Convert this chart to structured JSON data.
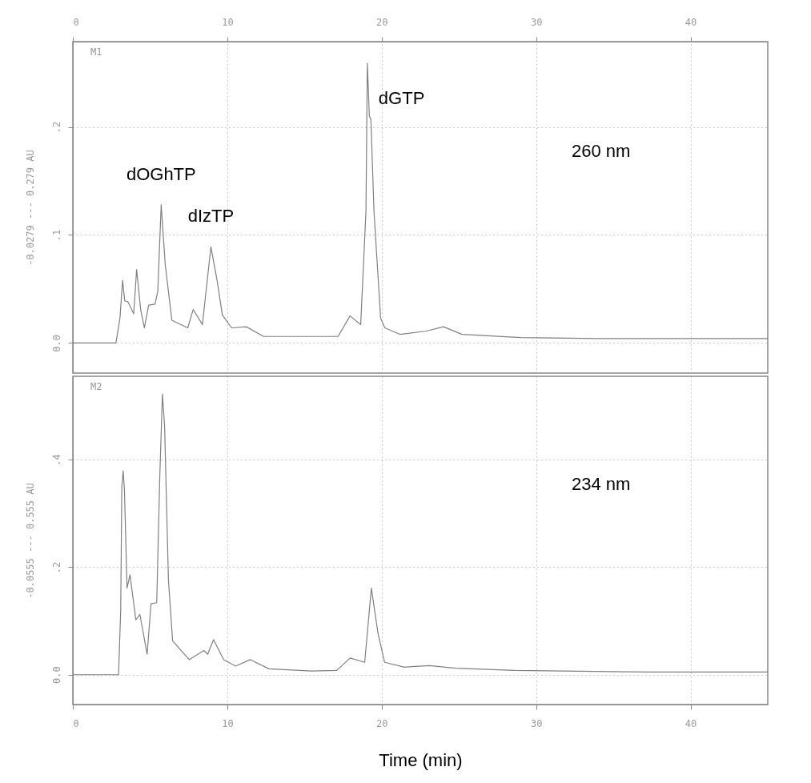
{
  "chart_data": [
    {
      "type": "line",
      "title": "M1",
      "subtitle": "260 nm",
      "ylabel": "-0.0279 --- 0.279 AU",
      "xlim": [
        0,
        45
      ],
      "xticks": [
        0,
        10,
        20,
        30,
        40
      ],
      "ylim": [
        -0.0279,
        0.279
      ],
      "yticks": [
        {
          "value": 0,
          "label": "0.0"
        },
        {
          "value": 0.1,
          "label": ".1"
        },
        {
          "value": 0.2,
          "label": ".2"
        }
      ],
      "grid": true,
      "marker": "none",
      "line_style": "solid",
      "series": [
        {
          "color": "#808080",
          "x": [
            0,
            2.79,
            3.05,
            3.22,
            3.36,
            3.57,
            3.94,
            4.13,
            4.39,
            4.63,
            4.91,
            5.32,
            5.5,
            5.72,
            5.98,
            6.41,
            7.44,
            7.79,
            8.39,
            8.94,
            9.34,
            9.68,
            10.28,
            11.23,
            12.35,
            15.1,
            17.17,
            17.95,
            18.64,
            18.98,
            19.07,
            19.2,
            19.3,
            19.5,
            19.93,
            20.2,
            21.17,
            22.9,
            24.0,
            25.2,
            29.0,
            34.0,
            45
          ],
          "values": [
            0,
            0,
            0.023,
            0.058,
            0.039,
            0.038,
            0.027,
            0.068,
            0.031,
            0.014,
            0.035,
            0.036,
            0.048,
            0.128,
            0.073,
            0.021,
            0.014,
            0.031,
            0.017,
            0.089,
            0.058,
            0.026,
            0.014,
            0.015,
            0.006,
            0.006,
            0.006,
            0.025,
            0.017,
            0.122,
            0.259,
            0.21,
            0.207,
            0.122,
            0.023,
            0.014,
            0.008,
            0.011,
            0.015,
            0.008,
            0.005,
            0.004,
            0.004
          ]
        }
      ],
      "annotations": [
        {
          "text": "dOGhTP",
          "x": 5.72,
          "y": 0.128
        },
        {
          "text": "dIzTP",
          "x": 8.94,
          "y": 0.089
        },
        {
          "text": "dGTP",
          "x": 19.07,
          "y": 0.259
        }
      ]
    },
    {
      "type": "line",
      "title": "M2",
      "subtitle": "234 nm",
      "xlabel": "Time (min)",
      "ylabel": "-0.0555 --- 0.555 AU",
      "xlim": [
        0,
        45
      ],
      "xticks": [
        0,
        10,
        20,
        30,
        40
      ],
      "ylim": [
        -0.0555,
        0.555
      ],
      "yticks": [
        {
          "value": 0,
          "label": "0.0"
        },
        {
          "value": 0.2,
          "label": ".2"
        },
        {
          "value": 0.4,
          "label": ".4"
        }
      ],
      "grid": true,
      "marker": "none",
      "line_style": "solid",
      "series": [
        {
          "color": "#808080",
          "x": [
            0,
            2.96,
            3.1,
            3.17,
            3.26,
            3.34,
            3.51,
            3.7,
            4.08,
            4.34,
            4.81,
            5.06,
            5.43,
            5.63,
            5.8,
            5.94,
            6.19,
            6.46,
            7.53,
            8.48,
            8.73,
            9.11,
            9.77,
            10.54,
            11.49,
            12.7,
            15.45,
            17.09,
            17.95,
            18.9,
            19.33,
            19.76,
            20.19,
            21.48,
            21.94,
            23.1,
            24.8,
            28.6,
            37.3,
            45
          ],
          "values": [
            0,
            0,
            0.122,
            0.349,
            0.379,
            0.344,
            0.161,
            0.186,
            0.102,
            0.112,
            0.038,
            0.132,
            0.134,
            0.369,
            0.522,
            0.463,
            0.176,
            0.063,
            0.028,
            0.045,
            0.038,
            0.065,
            0.028,
            0.016,
            0.028,
            0.011,
            0.007,
            0.008,
            0.031,
            0.023,
            0.161,
            0.077,
            0.023,
            0.014,
            0.015,
            0.017,
            0.012,
            0.008,
            0.005,
            0.005
          ]
        }
      ]
    }
  ]
}
